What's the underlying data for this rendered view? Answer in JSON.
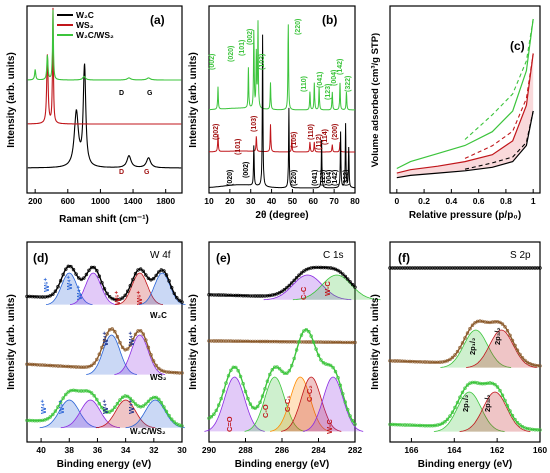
{
  "colors": {
    "black": "#000000",
    "red": "#c0161b",
    "green": "#3cc43c",
    "blue": "#2a64d6",
    "purple": "#8a2be2",
    "orange": "#ff8c00",
    "darkred": "#a01010",
    "brown": "#8b5a2b",
    "fill_pink": "#f6c9cc"
  },
  "chart_data": [
    {
      "id": "a",
      "type": "line",
      "panel_label": "(a)",
      "xlabel": "Raman shift (cm⁻¹)",
      "ylabel": "Intensity (arb. units)",
      "xlim": [
        100,
        2000
      ],
      "xticks": [
        200,
        600,
        1000,
        1400,
        1800
      ],
      "legend": [
        "W₂C",
        "WS₂",
        "W₂C/WS₂"
      ],
      "legend_placement": "top-right",
      "peak_labels": [
        {
          "text": "D",
          "series": "W₂C/WS₂",
          "x": 1350
        },
        {
          "text": "G",
          "series": "W₂C/WS₂",
          "x": 1590
        },
        {
          "text": "D",
          "series": "W₂C",
          "x": 1350
        },
        {
          "text": "G",
          "series": "W₂C",
          "x": 1590
        }
      ],
      "series": [
        {
          "name": "W₂C",
          "peaks_cm-1": [
            705,
            805,
            1350,
            1590
          ],
          "rel_intensity": [
            0.55,
            1.0,
            0.12,
            0.1
          ]
        },
        {
          "name": "WS₂",
          "peaks_cm-1": [
            350,
            418
          ],
          "rel_intensity": [
            0.6,
            1.0
          ]
        },
        {
          "name": "W₂C/WS₂",
          "peaks_cm-1": [
            200,
            350,
            418,
            800,
            1350,
            1590
          ],
          "rel_intensity": [
            0.15,
            0.35,
            1.0,
            0.05,
            0.03,
            0.03
          ]
        }
      ]
    },
    {
      "id": "b",
      "type": "line",
      "panel_label": "(b)",
      "xlabel": "2θ (degree)",
      "ylabel": "Intensity (arb. units)",
      "xlim": [
        10,
        80
      ],
      "xticks": [
        10,
        20,
        30,
        40,
        50,
        60,
        70,
        80
      ],
      "series": [
        {
          "name": "W₂C/WS₂",
          "peaks_2theta": [
            14.3,
            28.9,
            31.5,
            32.7,
            33.5,
            39.5,
            48.0,
            58.4,
            60.5,
            62.8,
            69.1,
            72.8,
            75.9
          ]
        },
        {
          "name": "WS₂",
          "peaks_2theta": [
            14.3,
            32.7,
            39.5,
            49.7,
            58.4,
            60.5,
            69.1,
            72.8
          ]
        },
        {
          "name": "W₂C",
          "peaks_2theta": [
            31.5,
            35.7,
            48.3,
            64.0,
            73.1,
            75.5,
            77.0
          ]
        }
      ],
      "green_hkl": [
        "(002)",
        "(020)",
        "(101)",
        "(002)",
        "(103)",
        "(220)",
        "(110)",
        "(041)",
        "(123)",
        "(004)",
        "(142)",
        "(322)"
      ],
      "red_hkl": [
        "(002)",
        "(101)",
        "(103)",
        "(105)",
        "(110)",
        "(112)",
        "(114)",
        "(200)"
      ],
      "black_hkl": [
        "(020)",
        "(002)",
        "(220)",
        "(041)",
        "(123)",
        "(004)",
        "(142)",
        "(322)"
      ]
    },
    {
      "id": "c",
      "type": "line",
      "panel_label": "(c)",
      "xlabel": "Relative pressure (p/p₀)",
      "ylabel": "Volume adsorbed (cm³/g STP)",
      "xlim": [
        -0.05,
        1.05
      ],
      "xticks": [
        0.0,
        0.2,
        0.4,
        0.6,
        0.8,
        1.0
      ],
      "series": [
        {
          "name": "W₂C/WS₂",
          "x": [
            0.0,
            0.1,
            0.3,
            0.5,
            0.7,
            0.85,
            0.95,
            1.0
          ],
          "y": [
            1.0,
            1.6,
            2.3,
            3.0,
            4.2,
            6.0,
            9.5,
            14.0
          ]
        },
        {
          "name": "WS₂",
          "x": [
            0.0,
            0.1,
            0.3,
            0.5,
            0.7,
            0.85,
            0.95,
            1.0
          ],
          "y": [
            0.6,
            0.9,
            1.2,
            1.6,
            2.2,
            3.4,
            6.5,
            11.0
          ]
        },
        {
          "name": "W₂C",
          "x": [
            0.0,
            0.1,
            0.3,
            0.5,
            0.7,
            0.85,
            0.95,
            1.0
          ],
          "y": [
            0.2,
            0.4,
            0.6,
            0.8,
            1.1,
            1.6,
            3.0,
            6.0
          ]
        }
      ]
    },
    {
      "id": "d",
      "type": "line",
      "panel_label": "(d)",
      "title": "W 4f",
      "xlabel": "Binding energy (eV)",
      "ylabel": "Intensity (arb. units)",
      "xlim": [
        41,
        30
      ],
      "xticks": [
        40,
        38,
        36,
        34,
        32,
        30
      ],
      "curve_labels": [
        "W₂C",
        "WS₂",
        "W₂C/WS₂"
      ],
      "peak_labels": [
        "W⁶⁺",
        "W⁴⁺",
        "W⁴⁺",
        "W⁶⁺",
        "W⁶⁺",
        "W⁴⁺",
        "W⁴⁺",
        "W⁴⁺",
        "W⁶⁺",
        "W⁴⁺",
        "W⁴⁺"
      ],
      "series": [
        {
          "name": "W₂C",
          "peaks_eV": [
            38.0,
            36.3,
            33.0,
            31.4
          ]
        },
        {
          "name": "WS₂",
          "peaks_eV": [
            35.0,
            33.0
          ]
        },
        {
          "name": "W₂C/WS₂",
          "peaks_eV": [
            38.0,
            36.5,
            34.0,
            31.9
          ]
        }
      ]
    },
    {
      "id": "e",
      "type": "line",
      "panel_label": "(e)",
      "title": "C 1s",
      "xlabel": "Binding energy (eV)",
      "ylabel": "Intensity (arb. units)",
      "xlim": [
        290,
        282
      ],
      "xticks": [
        290,
        288,
        286,
        284,
        282
      ],
      "peak_labels": [
        "C-C",
        "W-C",
        "C=O",
        "C-O",
        "C-C₁",
        "C-C₂",
        "W-C"
      ],
      "series": [
        {
          "name": "W₂C",
          "peaks_eV": [
            284.6,
            283.0
          ]
        },
        {
          "name": "WS₂",
          "peaks_eV": []
        },
        {
          "name": "W₂C/WS₂",
          "peaks_eV": [
            288.6,
            286.4,
            285.0,
            284.4,
            283.2
          ]
        }
      ]
    },
    {
      "id": "f",
      "type": "line",
      "panel_label": "(f)",
      "title": "S 2p",
      "xlabel": "Binding energy (eV)",
      "ylabel": "Intensity (arb. units)",
      "xlim": [
        167,
        160
      ],
      "xticks": [
        166,
        164,
        162,
        160
      ],
      "peak_labels": [
        "2p₁/₂",
        "2p₃/₂",
        "2p₁/₂",
        "2p₃/₂"
      ],
      "series": [
        {
          "name": "W₂C",
          "peaks_eV": []
        },
        {
          "name": "WS₂",
          "peaks_eV": [
            163.0,
            161.8
          ]
        },
        {
          "name": "W₂C/WS₂",
          "peaks_eV": [
            163.3,
            162.1
          ]
        }
      ]
    }
  ]
}
